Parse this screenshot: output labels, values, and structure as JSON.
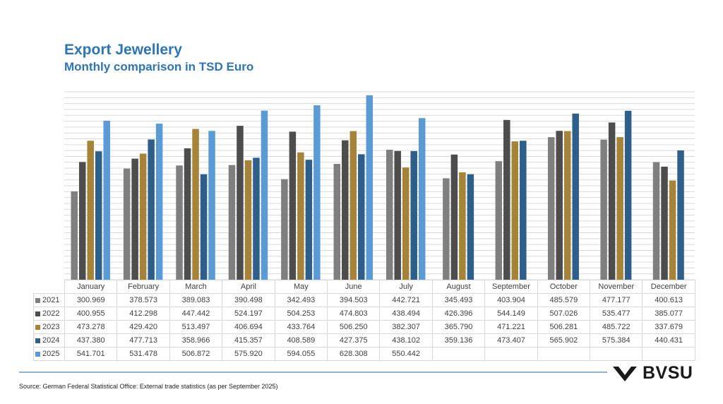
{
  "header": {
    "title": "Export Jewellery",
    "subtitle": "Monthly comparison in TSD Euro"
  },
  "footer": {
    "source": "Source: German Federal Statistical Office: External trade statistics (as per September 2025)",
    "logo_text": "BVSU"
  },
  "chart_data": {
    "type": "bar",
    "title": "Export Jewellery",
    "subtitle": "Monthly comparison in TSD Euro",
    "categories": [
      "January",
      "February",
      "March",
      "April",
      "May",
      "June",
      "July",
      "August",
      "September",
      "October",
      "November",
      "December"
    ],
    "ylim": [
      0,
      640
    ],
    "grid": true,
    "series": [
      {
        "name": "2021",
        "color": "#7f7f7f",
        "values": [
          "300.969",
          "378.573",
          "389.083",
          "390.498",
          "342.493",
          "394.503",
          "442.721",
          "345.493",
          "403.904",
          "485.579",
          "477.177",
          "400.613"
        ]
      },
      {
        "name": "2022",
        "color": "#4d4d4d",
        "values": [
          "400.955",
          "412.298",
          "447.442",
          "524.197",
          "504.253",
          "474.803",
          "438.494",
          "426.396",
          "544.149",
          "507.026",
          "535.477",
          "385.077"
        ]
      },
      {
        "name": "2023",
        "color": "#a5843a",
        "values": [
          "473.278",
          "429.420",
          "513.497",
          "406.694",
          "433.764",
          "506.250",
          "382.307",
          "365.790",
          "471.221",
          "506.281",
          "485.722",
          "337.679"
        ]
      },
      {
        "name": "2024",
        "color": "#2e5f8a",
        "values": [
          "437.380",
          "477.713",
          "358.966",
          "415.357",
          "408.589",
          "427.375",
          "438.102",
          "359.136",
          "473.407",
          "565.902",
          "575.384",
          "440.431"
        ]
      },
      {
        "name": "2025",
        "color": "#5b9bd5",
        "values": [
          "541.701",
          "531.478",
          "506.872",
          "575.920",
          "594.055",
          "628.308",
          "550.442",
          "",
          "",
          "",
          "",
          ""
        ]
      }
    ]
  }
}
